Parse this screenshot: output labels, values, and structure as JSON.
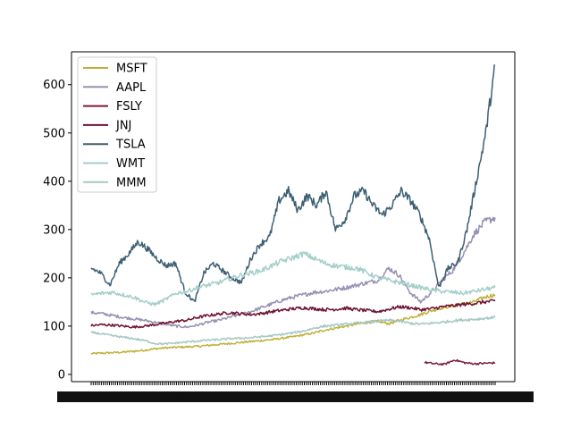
{
  "chart_data": {
    "type": "line",
    "ylim": [
      -15,
      668
    ],
    "y_ticks": [
      0,
      100,
      200,
      300,
      400,
      500,
      600
    ],
    "x_ticks_note": "dense overlapping date labels",
    "grid": false,
    "legend_placement": "upper-left",
    "series": [
      {
        "name": "MSFT",
        "color": "#c0b03a",
        "values": [
          43,
          44,
          45,
          46,
          48,
          50,
          53,
          55,
          56,
          57,
          58,
          60,
          62,
          64,
          66,
          68,
          70,
          72,
          75,
          78,
          82,
          86,
          92,
          96,
          100,
          104,
          108,
          110,
          105,
          112,
          118,
          124,
          132,
          138,
          142,
          146,
          150,
          160,
          165
        ]
      },
      {
        "name": "AAPL",
        "color": "#9690b2",
        "values": [
          128,
          126,
          122,
          118,
          115,
          112,
          108,
          104,
          100,
          98,
          102,
          108,
          112,
          118,
          124,
          130,
          138,
          146,
          154,
          160,
          165,
          170,
          172,
          176,
          180,
          185,
          190,
          195,
          220,
          205,
          170,
          150,
          170,
          195,
          215,
          250,
          290,
          315,
          325
        ]
      },
      {
        "name": "FSLY",
        "color": "#7d1a3a",
        "values": [
          null,
          null,
          null,
          null,
          null,
          null,
          null,
          null,
          null,
          null,
          null,
          null,
          null,
          null,
          null,
          null,
          null,
          null,
          null,
          null,
          null,
          null,
          null,
          null,
          null,
          null,
          null,
          null,
          null,
          null,
          null,
          null,
          null,
          25,
          22,
          21,
          30,
          24,
          22,
          23,
          24
        ]
      },
      {
        "name": "JNJ",
        "color": "#6e1230",
        "values": [
          101,
          103,
          102,
          100,
          98,
          100,
          103,
          106,
          110,
          112,
          118,
          122,
          125,
          128,
          126,
          124,
          126,
          130,
          133,
          136,
          138,
          136,
          134,
          135,
          137,
          134,
          132,
          130,
          135,
          140,
          138,
          134,
          136,
          140,
          142,
          145,
          147,
          150,
          152
        ]
      },
      {
        "name": "TSLA",
        "color": "#3d5f74",
        "values": [
          220,
          210,
          185,
          230,
          250,
          275,
          260,
          240,
          225,
          230,
          170,
          150,
          210,
          230,
          215,
          200,
          190,
          240,
          270,
          285,
          360,
          380,
          340,
          370,
          350,
          380,
          300,
          320,
          370,
          380,
          350,
          330,
          350,
          380,
          360,
          330,
          280,
          180,
          220,
          230,
          300,
          400,
          500,
          640
        ]
      },
      {
        "name": "WMT",
        "color": "#a5ceca",
        "values": [
          165,
          168,
          170,
          165,
          160,
          150,
          145,
          155,
          168,
          172,
          180,
          185,
          190,
          198,
          205,
          210,
          215,
          225,
          235,
          242,
          250,
          240,
          230,
          225,
          222,
          220,
          210,
          200,
          195,
          190,
          185,
          180,
          175,
          172,
          170,
          168,
          172,
          176,
          180
        ]
      },
      {
        "name": "MMM",
        "color": "#a5c8c4",
        "values": [
          87,
          84,
          80,
          77,
          74,
          70,
          64,
          63,
          65,
          67,
          69,
          71,
          72,
          74,
          75,
          76,
          78,
          80,
          83,
          86,
          90,
          96,
          100,
          102,
          104,
          106,
          108,
          110,
          112,
          110,
          106,
          104,
          106,
          108,
          111,
          113,
          114,
          116,
          118
        ]
      }
    ]
  }
}
